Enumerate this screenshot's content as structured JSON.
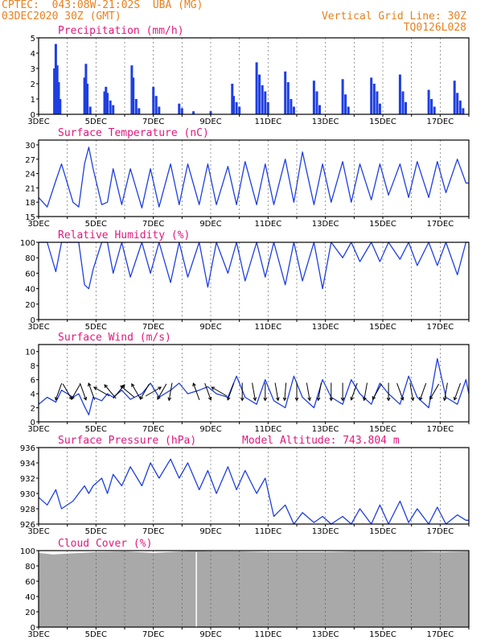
{
  "header": {
    "line1": "CPTEC:  043:08W-21:02S  UBA (MG)",
    "line2": "03DEC2020 30Z (GMT)",
    "grid_note": "Vertical Grid Line: 30Z",
    "code": "TQ0126L028"
  },
  "x_axis": {
    "start_day": 3,
    "end_day": 18,
    "labels": [
      "3DEC",
      "5DEC",
      "7DEC",
      "9DEC",
      "11DEC",
      "13DEC",
      "15DEC",
      "17DEC"
    ],
    "label_days": [
      3,
      5,
      7,
      9,
      11,
      13,
      15,
      17
    ]
  },
  "colors": {
    "accent": "#e8801e",
    "title": "#e0187c",
    "series": "#1f3fe0",
    "cloud": "#a9a9a9"
  },
  "chart_data": [
    {
      "type": "bar",
      "title": "Precipitation (mm/h)",
      "ylim": [
        0,
        5
      ],
      "yticks": [
        0,
        1,
        2,
        3,
        4,
        5
      ],
      "day_values": [
        {
          "x": 3.55,
          "y": 3.0
        },
        {
          "x": 3.6,
          "y": 4.6
        },
        {
          "x": 3.65,
          "y": 3.2
        },
        {
          "x": 3.7,
          "y": 2.1
        },
        {
          "x": 3.75,
          "y": 1.0
        },
        {
          "x": 4.6,
          "y": 2.4
        },
        {
          "x": 4.65,
          "y": 3.3
        },
        {
          "x": 4.7,
          "y": 2.0
        },
        {
          "x": 4.8,
          "y": 0.5
        },
        {
          "x": 5.3,
          "y": 1.5
        },
        {
          "x": 5.35,
          "y": 1.8
        },
        {
          "x": 5.4,
          "y": 1.4
        },
        {
          "x": 5.5,
          "y": 0.9
        },
        {
          "x": 5.6,
          "y": 0.6
        },
        {
          "x": 6.25,
          "y": 3.2
        },
        {
          "x": 6.3,
          "y": 2.4
        },
        {
          "x": 6.4,
          "y": 1.0
        },
        {
          "x": 6.5,
          "y": 0.4
        },
        {
          "x": 7.0,
          "y": 1.8
        },
        {
          "x": 7.1,
          "y": 1.2
        },
        {
          "x": 7.2,
          "y": 0.5
        },
        {
          "x": 7.9,
          "y": 0.7
        },
        {
          "x": 8.0,
          "y": 0.4
        },
        {
          "x": 8.4,
          "y": 0.2
        },
        {
          "x": 9.0,
          "y": 0.2
        },
        {
          "x": 9.75,
          "y": 2.0
        },
        {
          "x": 9.8,
          "y": 1.2
        },
        {
          "x": 9.9,
          "y": 0.8
        },
        {
          "x": 10.0,
          "y": 0.5
        },
        {
          "x": 10.6,
          "y": 3.4
        },
        {
          "x": 10.7,
          "y": 2.6
        },
        {
          "x": 10.8,
          "y": 1.9
        },
        {
          "x": 10.9,
          "y": 1.5
        },
        {
          "x": 11.0,
          "y": 0.8
        },
        {
          "x": 11.6,
          "y": 2.8
        },
        {
          "x": 11.7,
          "y": 2.1
        },
        {
          "x": 11.8,
          "y": 1.0
        },
        {
          "x": 11.9,
          "y": 0.5
        },
        {
          "x": 12.6,
          "y": 2.2
        },
        {
          "x": 12.7,
          "y": 1.5
        },
        {
          "x": 12.8,
          "y": 0.6
        },
        {
          "x": 13.6,
          "y": 2.3
        },
        {
          "x": 13.7,
          "y": 1.3
        },
        {
          "x": 13.8,
          "y": 0.5
        },
        {
          "x": 14.6,
          "y": 2.4
        },
        {
          "x": 14.7,
          "y": 2.0
        },
        {
          "x": 14.8,
          "y": 1.5
        },
        {
          "x": 14.9,
          "y": 0.7
        },
        {
          "x": 15.6,
          "y": 2.6
        },
        {
          "x": 15.7,
          "y": 1.5
        },
        {
          "x": 15.8,
          "y": 0.8
        },
        {
          "x": 16.6,
          "y": 1.6
        },
        {
          "x": 16.7,
          "y": 1.0
        },
        {
          "x": 16.8,
          "y": 0.5
        },
        {
          "x": 17.5,
          "y": 2.2
        },
        {
          "x": 17.6,
          "y": 1.4
        },
        {
          "x": 17.7,
          "y": 0.9
        },
        {
          "x": 17.8,
          "y": 0.4
        }
      ]
    },
    {
      "type": "line",
      "title": "Surface Temperature (nC)",
      "ylim": [
        15,
        31
      ],
      "yticks": [
        15,
        18,
        21,
        24,
        27,
        30
      ],
      "x": [
        3.0,
        3.3,
        3.6,
        3.8,
        4.2,
        4.4,
        4.6,
        4.75,
        4.9,
        5.2,
        5.4,
        5.6,
        5.9,
        6.2,
        6.6,
        6.9,
        7.2,
        7.6,
        7.9,
        8.2,
        8.6,
        8.9,
        9.2,
        9.6,
        9.9,
        10.2,
        10.6,
        10.9,
        11.2,
        11.6,
        11.9,
        12.2,
        12.6,
        12.9,
        13.2,
        13.6,
        13.9,
        14.2,
        14.6,
        14.9,
        15.2,
        15.6,
        15.9,
        16.2,
        16.6,
        16.9,
        17.2,
        17.6,
        17.9,
        18.0
      ],
      "y": [
        19,
        17,
        22.5,
        26,
        18,
        17,
        26,
        29.5,
        25,
        17.5,
        18,
        25,
        17.5,
        25,
        16.8,
        25,
        17,
        26,
        17.5,
        26,
        17.5,
        26,
        17.5,
        25.5,
        17.5,
        26.5,
        17.5,
        26,
        17.5,
        27,
        18,
        28.5,
        17.5,
        26,
        18,
        26.5,
        18,
        26,
        18.5,
        26,
        19.5,
        26,
        19,
        26.5,
        19,
        26.5,
        20,
        27,
        22,
        22
      ]
    },
    {
      "type": "line",
      "title": "Relative Humidity (%)",
      "ylim": [
        0,
        100
      ],
      "yticks": [
        0,
        20,
        40,
        60,
        80,
        100
      ],
      "x": [
        3.0,
        3.3,
        3.6,
        3.8,
        4.2,
        4.4,
        4.6,
        4.75,
        4.9,
        5.2,
        5.4,
        5.6,
        5.9,
        6.2,
        6.6,
        6.9,
        7.2,
        7.6,
        7.9,
        8.2,
        8.6,
        8.9,
        9.2,
        9.6,
        9.9,
        10.2,
        10.6,
        10.9,
        11.2,
        11.6,
        11.9,
        12.2,
        12.6,
        12.9,
        13.2,
        13.6,
        13.9,
        14.2,
        14.6,
        14.9,
        15.2,
        15.6,
        15.9,
        16.2,
        16.6,
        16.9,
        17.2,
        17.6,
        17.9,
        18.0
      ],
      "y": [
        100,
        100,
        62,
        100,
        100,
        100,
        45,
        40,
        65,
        100,
        100,
        60,
        100,
        55,
        100,
        60,
        100,
        48,
        100,
        55,
        100,
        42,
        100,
        60,
        100,
        50,
        100,
        55,
        100,
        45,
        100,
        50,
        100,
        40,
        100,
        80,
        100,
        75,
        100,
        75,
        100,
        78,
        100,
        70,
        100,
        70,
        100,
        58,
        100,
        100
      ]
    },
    {
      "type": "line",
      "title": "Surface Wind (m/s)",
      "ylim": [
        0,
        11
      ],
      "yticks": [
        0,
        2,
        4,
        6,
        8,
        10
      ],
      "x": [
        3.0,
        3.3,
        3.6,
        3.8,
        4.2,
        4.4,
        4.6,
        4.75,
        4.9,
        5.2,
        5.4,
        5.6,
        5.9,
        6.2,
        6.6,
        6.9,
        7.2,
        7.6,
        7.9,
        8.2,
        8.6,
        8.9,
        9.2,
        9.6,
        9.9,
        10.2,
        10.6,
        10.9,
        11.2,
        11.6,
        11.9,
        12.2,
        12.6,
        12.9,
        13.2,
        13.6,
        13.9,
        14.2,
        14.6,
        14.9,
        15.2,
        15.6,
        15.9,
        16.2,
        16.6,
        16.9,
        17.2,
        17.6,
        17.9,
        18.0
      ],
      "y": [
        2.5,
        3.5,
        2.8,
        4.5,
        3.5,
        4.0,
        2.2,
        1.0,
        3.5,
        3.0,
        4.0,
        3.5,
        4.5,
        3.2,
        4.0,
        5.5,
        3.5,
        4.5,
        5.5,
        4.0,
        4.5,
        5.0,
        4.0,
        3.5,
        6.5,
        3.5,
        2.5,
        6.0,
        3.0,
        2.0,
        6.5,
        3.5,
        2.0,
        6.0,
        3.5,
        2.5,
        6.0,
        4.0,
        2.5,
        5.5,
        4.0,
        2.5,
        6.5,
        3.5,
        2.0,
        9.0,
        3.5,
        2.5,
        6.0,
        4.0
      ]
    },
    {
      "type": "line",
      "title": "Surface Pressure (hPa)",
      "annotation": "Model Altitude: 743.804 m",
      "ylim": [
        926,
        936
      ],
      "yticks": [
        926,
        928,
        930,
        932,
        934,
        936
      ],
      "x": [
        3.0,
        3.3,
        3.6,
        3.8,
        4.2,
        4.4,
        4.6,
        4.75,
        4.9,
        5.2,
        5.4,
        5.6,
        5.9,
        6.2,
        6.6,
        6.9,
        7.2,
        7.6,
        7.9,
        8.2,
        8.6,
        8.9,
        9.2,
        9.6,
        9.9,
        10.2,
        10.6,
        10.9,
        11.2,
        11.6,
        11.9,
        12.2,
        12.6,
        12.9,
        13.2,
        13.6,
        13.9,
        14.2,
        14.6,
        14.9,
        15.2,
        15.6,
        15.9,
        16.2,
        16.6,
        16.9,
        17.2,
        17.6,
        17.9,
        18.0
      ],
      "y": [
        929.5,
        928.5,
        930.5,
        928,
        929,
        930,
        931,
        930,
        931,
        932,
        930,
        932.5,
        931,
        933.5,
        931,
        934,
        932,
        934.5,
        932,
        934,
        930.5,
        933,
        930,
        933.5,
        930.5,
        933,
        930,
        932,
        927,
        928.5,
        926,
        927.5,
        926.2,
        927,
        925.8,
        927,
        925.5,
        928,
        926,
        928.5,
        926,
        929,
        926.2,
        928,
        926,
        928.2,
        926,
        927.2,
        926.5,
        926.5
      ]
    },
    {
      "type": "area",
      "title": "Cloud Cover (%)",
      "ylim": [
        0,
        100
      ],
      "yticks": [
        0,
        20,
        40,
        60,
        80,
        100
      ],
      "x": [
        3.0,
        3.5,
        4.0,
        5.0,
        6.0,
        7.0,
        8.0,
        8.5,
        9.0,
        10.0,
        11.0,
        12.0,
        13.0,
        14.0,
        15.0,
        16.0,
        17.0,
        18.0
      ],
      "y": [
        97,
        95,
        96,
        98,
        99,
        97,
        99,
        100,
        99,
        99,
        98,
        98,
        98,
        99,
        99,
        99,
        98,
        99
      ]
    }
  ],
  "wind_arrows": [
    {
      "x": 3.7,
      "deg": 200
    },
    {
      "x": 4.0,
      "deg": 150
    },
    {
      "x": 4.3,
      "deg": 210
    },
    {
      "x": 4.55,
      "deg": 160
    },
    {
      "x": 4.85,
      "deg": 340
    },
    {
      "x": 5.2,
      "deg": 300
    },
    {
      "x": 5.5,
      "deg": 320
    },
    {
      "x": 5.8,
      "deg": 40
    },
    {
      "x": 6.1,
      "deg": 310
    },
    {
      "x": 6.4,
      "deg": 330
    },
    {
      "x": 6.7,
      "deg": 210
    },
    {
      "x": 7.0,
      "deg": 60
    },
    {
      "x": 7.3,
      "deg": 210
    },
    {
      "x": 7.6,
      "deg": 190
    },
    {
      "x": 8.5,
      "deg": 340
    },
    {
      "x": 8.9,
      "deg": 160
    },
    {
      "x": 9.3,
      "deg": 300
    },
    {
      "x": 9.7,
      "deg": 200
    },
    {
      "x": 10.1,
      "deg": 180
    },
    {
      "x": 10.5,
      "deg": 170
    },
    {
      "x": 10.9,
      "deg": 180
    },
    {
      "x": 11.3,
      "deg": 170
    },
    {
      "x": 11.6,
      "deg": 185
    },
    {
      "x": 12.0,
      "deg": 180
    },
    {
      "x": 12.4,
      "deg": 170
    },
    {
      "x": 12.8,
      "deg": 190
    },
    {
      "x": 13.2,
      "deg": 180
    },
    {
      "x": 13.6,
      "deg": 180
    },
    {
      "x": 14.0,
      "deg": 200
    },
    {
      "x": 14.4,
      "deg": 190
    },
    {
      "x": 14.8,
      "deg": 210
    },
    {
      "x": 15.2,
      "deg": 180
    },
    {
      "x": 15.6,
      "deg": 160
    },
    {
      "x": 16.0,
      "deg": 170
    },
    {
      "x": 16.4,
      "deg": 200
    },
    {
      "x": 16.8,
      "deg": 210
    },
    {
      "x": 17.2,
      "deg": 190
    },
    {
      "x": 17.6,
      "deg": 200
    }
  ]
}
